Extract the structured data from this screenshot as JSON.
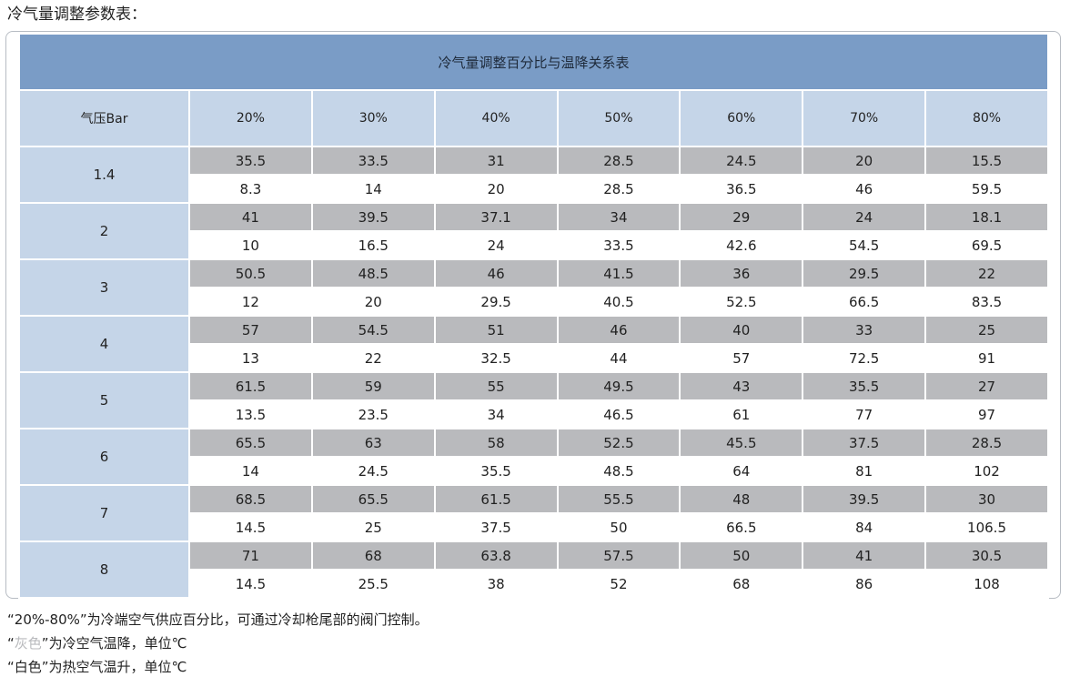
{
  "heading": "冷气量调整参数表：",
  "table": {
    "title": "冷气量调整百分比与温降关系表",
    "corner_label": "气压Bar",
    "columns": [
      "20%",
      "30%",
      "40%",
      "50%",
      "60%",
      "70%",
      "80%"
    ],
    "rows": [
      {
        "pressure": "1.4",
        "cold": [
          "35.5",
          "33.5",
          "31",
          "28.5",
          "24.5",
          "20",
          "15.5"
        ],
        "hot": [
          "8.3",
          "14",
          "20",
          "28.5",
          "36.5",
          "46",
          "59.5"
        ]
      },
      {
        "pressure": "2",
        "cold": [
          "41",
          "39.5",
          "37.1",
          "34",
          "29",
          "24",
          "18.1"
        ],
        "hot": [
          "10",
          "16.5",
          "24",
          "33.5",
          "42.6",
          "54.5",
          "69.5"
        ]
      },
      {
        "pressure": "3",
        "cold": [
          "50.5",
          "48.5",
          "46",
          "41.5",
          "36",
          "29.5",
          "22"
        ],
        "hot": [
          "12",
          "20",
          "29.5",
          "40.5",
          "52.5",
          "66.5",
          "83.5"
        ]
      },
      {
        "pressure": "4",
        "cold": [
          "57",
          "54.5",
          "51",
          "46",
          "40",
          "33",
          "25"
        ],
        "hot": [
          "13",
          "22",
          "32.5",
          "44",
          "57",
          "72.5",
          "91"
        ]
      },
      {
        "pressure": "5",
        "cold": [
          "61.5",
          "59",
          "55",
          "49.5",
          "43",
          "35.5",
          "27"
        ],
        "hot": [
          "13.5",
          "23.5",
          "34",
          "46.5",
          "61",
          "77",
          "97"
        ]
      },
      {
        "pressure": "6",
        "cold": [
          "65.5",
          "63",
          "58",
          "52.5",
          "45.5",
          "37.5",
          "28.5"
        ],
        "hot": [
          "14",
          "24.5",
          "35.5",
          "48.5",
          "64",
          "81",
          "102"
        ]
      },
      {
        "pressure": "7",
        "cold": [
          "68.5",
          "65.5",
          "61.5",
          "55.5",
          "48",
          "39.5",
          "30"
        ],
        "hot": [
          "14.5",
          "25",
          "37.5",
          "50",
          "66.5",
          "84",
          "106.5"
        ]
      },
      {
        "pressure": "8",
        "cold": [
          "71",
          "68",
          "63.8",
          "57.5",
          "50",
          "41",
          "30.5"
        ],
        "hot": [
          "14.5",
          "25.5",
          "38",
          "52",
          "68",
          "86",
          "108"
        ]
      }
    ]
  },
  "notes": {
    "line1": "“20%-80%”为冷端空气供应百分比，可通过冷却枪尾部的阀门控制。",
    "line2_open": "“",
    "line2_word": "灰色",
    "line2_rest": "”为冷空气温降，单位℃",
    "line3": "“白色”为热空气温升，单位℃"
  },
  "colors": {
    "title_bg": "#7a9cc6",
    "header_bg": "#c5d5e8",
    "cold_row_bg": "#b9babd",
    "hot_row_bg": "#ffffff"
  }
}
